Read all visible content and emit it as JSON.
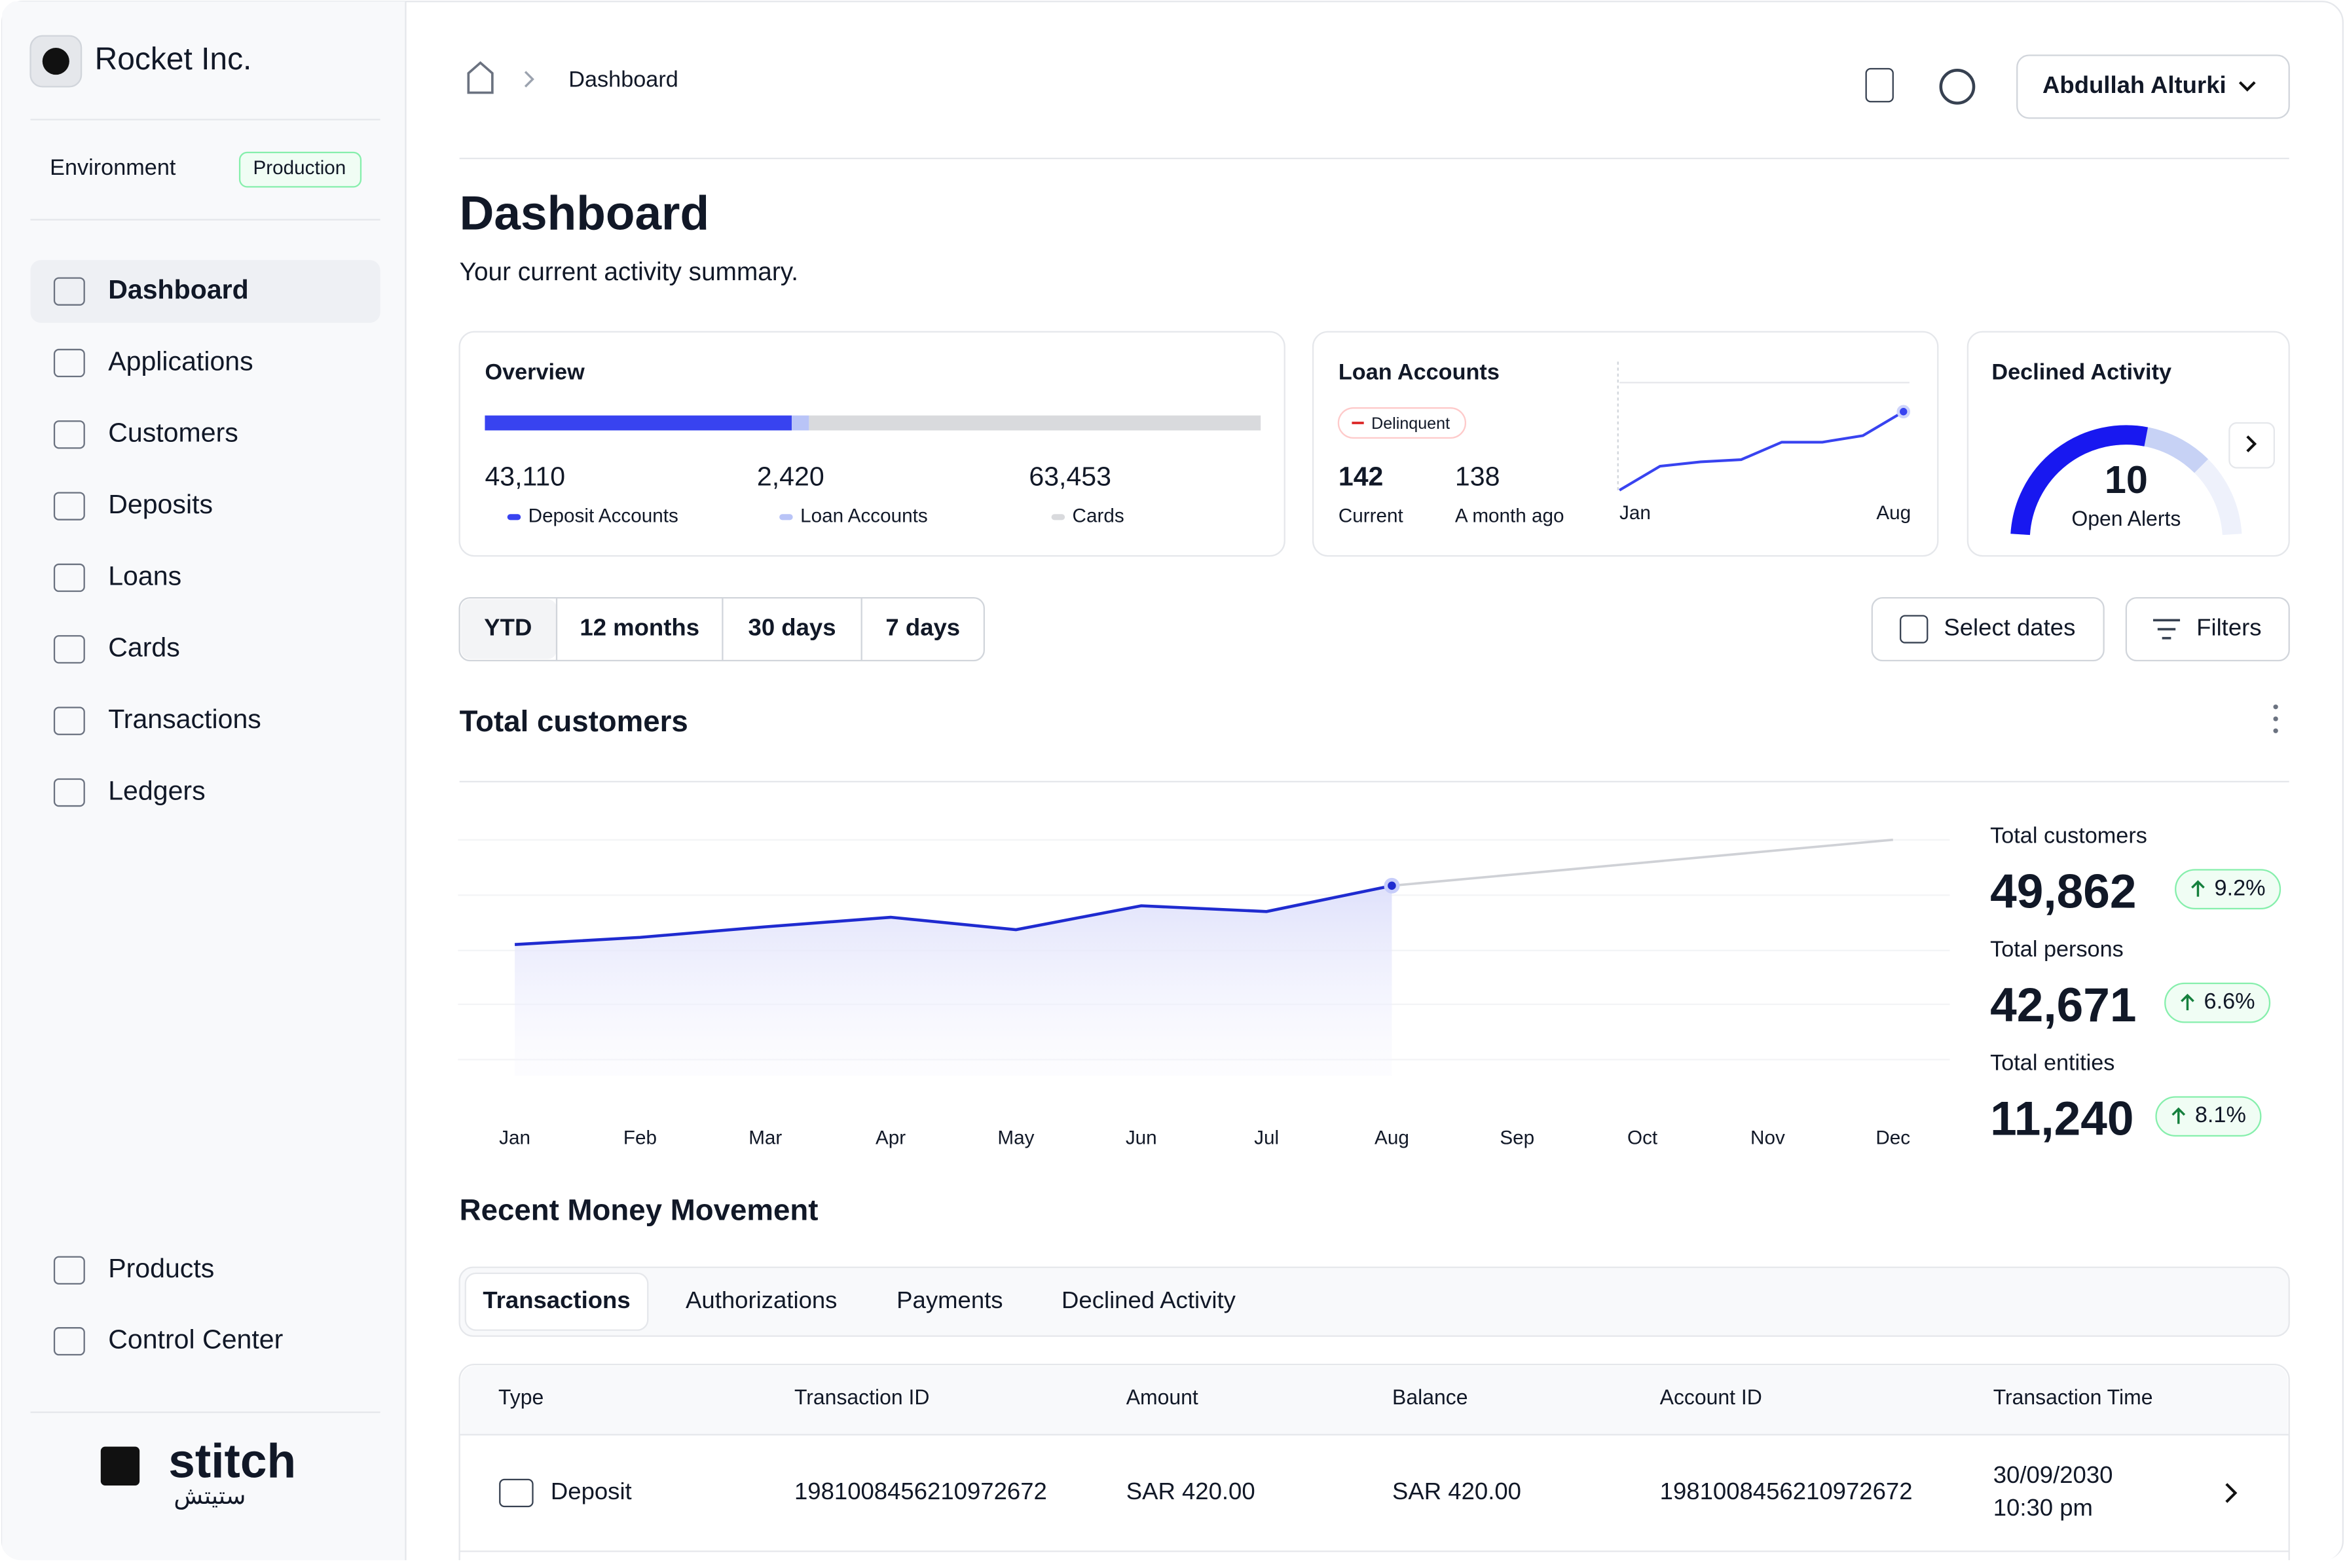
{
  "brand": "Rocket Inc.",
  "environment": {
    "label": "Environment",
    "value": "Production"
  },
  "nav": [
    "Dashboard",
    "Applications",
    "Customers",
    "Deposits",
    "Loans",
    "Cards",
    "Transactions",
    "Ledgers"
  ],
  "nav_bottom": [
    "Products",
    "Control Center"
  ],
  "footer_logo": {
    "name": "stitch",
    "arabic": "ستيتش"
  },
  "breadcrumb": "Dashboard",
  "user": "Abdullah Alturki",
  "page": {
    "title": "Dashboard",
    "subtitle": "Your current activity summary."
  },
  "declined_activity": {
    "title": "Declined Activity",
    "value": "10",
    "label": "Open Alerts"
  },
  "periods": [
    "YTD",
    "12 months",
    "30 days",
    "7 days"
  ],
  "select_dates": "Select dates",
  "filters": "Filters",
  "summary": [
    {
      "label": "Total customers",
      "value": "49,862",
      "change": "9.2%"
    },
    {
      "label": "Total persons",
      "value": "42,671",
      "change": "6.6%"
    },
    {
      "label": "Total entities",
      "value": "11,240",
      "change": "8.1%"
    }
  ],
  "section": "Recent Money Movement",
  "tabs": [
    "Transactions",
    "Authorizations",
    "Payments",
    "Declined Activity"
  ],
  "table": {
    "columns": [
      "Type",
      "Transaction ID",
      "Amount",
      "Balance",
      "Account ID",
      "Transaction Time"
    ],
    "rows": [
      [
        "Deposit",
        "1981008456210972672",
        "SAR 420.00",
        "SAR 420.00",
        "1981008456210972672",
        "30/09/2030",
        "10:30 pm"
      ]
    ]
  },
  "chart_data": [
    {
      "type": "stacked_bar",
      "title": "Overview",
      "series": [
        {
          "name": "Deposit Accounts",
          "color": "#3843f0",
          "values": [
            43110
          ],
          "value_labels": [
            "43,110"
          ]
        },
        {
          "name": "Loan Accounts",
          "color": "#b9c4f7",
          "values": [
            2420
          ],
          "value_labels": [
            "2,420"
          ]
        },
        {
          "name": "Cards",
          "color": "#d9dadd",
          "values": [
            63453
          ],
          "value_labels": [
            "63,453"
          ]
        }
      ]
    },
    {
      "type": "line",
      "title": "Loan Accounts",
      "badge": "Delinquent",
      "current": {
        "value": 142,
        "label": "Current"
      },
      "previous": {
        "value": 138,
        "label": "A month ago"
      },
      "categories": [
        "Jan",
        null,
        null,
        null,
        null,
        null,
        null,
        "Aug"
      ],
      "values": [
        100,
        111,
        113,
        114,
        122,
        122,
        125,
        136
      ],
      "color": "#3843f0",
      "ylim": [
        100,
        150
      ]
    },
    {
      "type": "line",
      "title": "Total customers",
      "categories": [
        "Jan",
        "Feb",
        "Mar",
        "Apr",
        "May",
        "Jun",
        "Jul",
        "Aug",
        "Sep",
        "Oct",
        "Nov",
        "Dec"
      ],
      "ylim": [
        30,
        55
      ],
      "series": [
        {
          "color": "#1f2bd0",
          "values": [
            43.75,
            44.5,
            45.6,
            46.6,
            45.3,
            47.8,
            47.2,
            49.9,
            null,
            null,
            null,
            null
          ]
        },
        {
          "color": "#cfd1d6",
          "values": [
            null,
            null,
            null,
            null,
            null,
            null,
            null,
            49.9,
            51.1,
            52.3,
            53.5,
            54.7
          ]
        }
      ]
    }
  ]
}
